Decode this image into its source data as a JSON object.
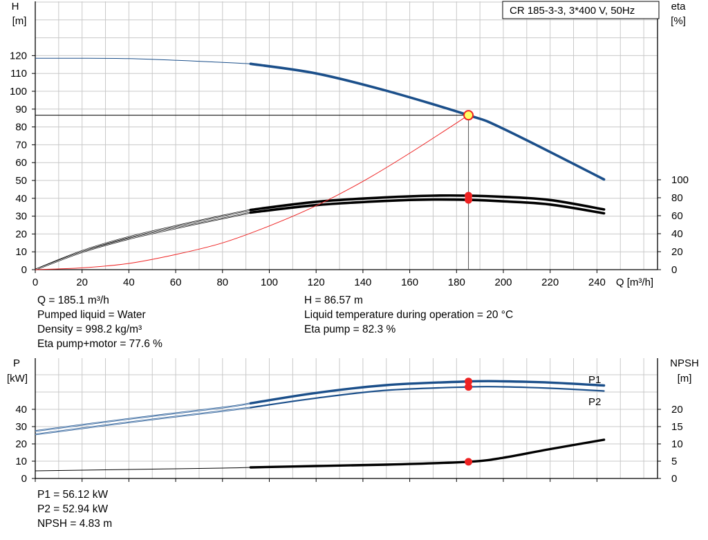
{
  "pump_title": "CR 185-3-3, 3*400 V, 50Hz",
  "colors": {
    "blue": "#1b4f8a",
    "pale_blue": "#b8cde4",
    "red": "#ee2222",
    "grid": "#c8c8c8",
    "op_fill": "#ffff66"
  },
  "top_info": {
    "q": "Q = 185.1 m³/h",
    "liquid": "Pumped liquid = Water",
    "density": "Density = 998.2 kg/m³",
    "eta_total": "Eta pump+motor = 77.6 %",
    "h": "H = 86.57 m",
    "temperature": "Liquid temperature during operation = 20 °C",
    "eta_pump": "Eta pump = 82.3 %"
  },
  "bottom_info": {
    "p1": "P1 = 56.12 kW",
    "p2": "P2 = 52.94 kW",
    "npsh": "NPSH = 4.83 m"
  },
  "chart_data": [
    {
      "type": "line",
      "name": "head-and-efficiency",
      "left_axis": {
        "label_line1": "H",
        "label_line2": "[m]",
        "ticks": [
          0,
          10,
          20,
          30,
          40,
          50,
          60,
          70,
          80,
          90,
          100,
          110,
          120
        ],
        "range": [
          0,
          130
        ]
      },
      "right_axis": {
        "label_line1": "eta",
        "label_line2": "[%]",
        "ticks": [
          0,
          20,
          40,
          60,
          80,
          100
        ],
        "range": [
          0,
          100
        ]
      },
      "x_axis": {
        "label": "Q [m³/h]",
        "ticks": [
          0,
          20,
          40,
          60,
          80,
          100,
          120,
          140,
          160,
          180,
          200,
          220,
          240
        ],
        "range": [
          0,
          260
        ]
      },
      "grid": true,
      "operating_point": {
        "q": 185.1,
        "h": 86.57,
        "eta_pump": 82.3,
        "eta_total": 77.6
      },
      "series": [
        {
          "curve": "head",
          "axis": "left",
          "x": [
            0,
            40,
            80,
            92,
            120,
            150,
            185.1,
            200,
            243
          ],
          "y": [
            118.5,
            118.3,
            116.2,
            115.4,
            110.0,
            100.3,
            86.57,
            79.0,
            50.6
          ]
        },
        {
          "curve": "eta-pump",
          "axis": "right",
          "x": [
            0,
            20,
            40,
            60,
            80,
            92,
            120,
            150,
            170,
            185.1,
            200,
            220,
            243
          ],
          "y": [
            0,
            20.8,
            36.3,
            48.5,
            60.0,
            66.5,
            75.5,
            80.5,
            82.3,
            82.3,
            81.0,
            77.5,
            67.0
          ]
        },
        {
          "curve": "eta-total",
          "axis": "right",
          "x": [
            0,
            20,
            40,
            60,
            80,
            92,
            120,
            150,
            170,
            185.1,
            200,
            220,
            243
          ],
          "y": [
            0,
            19.5,
            34.3,
            46.0,
            57.0,
            63.5,
            71.8,
            76.5,
            78.0,
            77.6,
            76.0,
            72.5,
            62.7
          ]
        },
        {
          "curve": "system-curve",
          "axis": "left",
          "x": [
            0,
            20,
            40,
            60,
            80,
            100,
            120,
            140,
            160,
            185.1
          ],
          "y": [
            0,
            1.0,
            3.5,
            8.5,
            15.0,
            24.5,
            35.8,
            49.5,
            65.3,
            86.57
          ]
        }
      ]
    },
    {
      "type": "line",
      "name": "power-and-npsh",
      "left_axis": {
        "label_line1": "P",
        "label_line2": "[kW]",
        "ticks": [
          0,
          10,
          20,
          30,
          40
        ],
        "range": [
          0,
          60
        ]
      },
      "right_axis": {
        "label_line1": "NPSH",
        "label_line2": "[m]",
        "ticks": [
          0,
          5,
          10,
          15,
          20
        ],
        "range": [
          0,
          30
        ]
      },
      "x_axis": {
        "range": [
          0,
          260
        ]
      },
      "grid": true,
      "series": [
        {
          "name": "P1",
          "axis": "left",
          "x": [
            0,
            40,
            80,
            92,
            120,
            150,
            185.1,
            200,
            220,
            243
          ],
          "y": [
            27.5,
            34.5,
            41.0,
            43.5,
            49.5,
            54.0,
            56.12,
            56.2,
            55.5,
            53.8
          ]
        },
        {
          "name": "P2",
          "axis": "left",
          "x": [
            0,
            40,
            80,
            92,
            120,
            150,
            185.1,
            200,
            220,
            243
          ],
          "y": [
            25.5,
            32.5,
            39.0,
            41.0,
            46.5,
            51.0,
            52.94,
            53.0,
            52.2,
            50.6
          ]
        },
        {
          "curve": "npsh",
          "axis": "right",
          "x": [
            0,
            40,
            80,
            92,
            120,
            150,
            185.1,
            200,
            220,
            243
          ],
          "y": [
            2.2,
            2.6,
            3.0,
            3.2,
            3.6,
            4.0,
            4.83,
            6.0,
            8.5,
            11.2
          ]
        }
      ]
    }
  ]
}
